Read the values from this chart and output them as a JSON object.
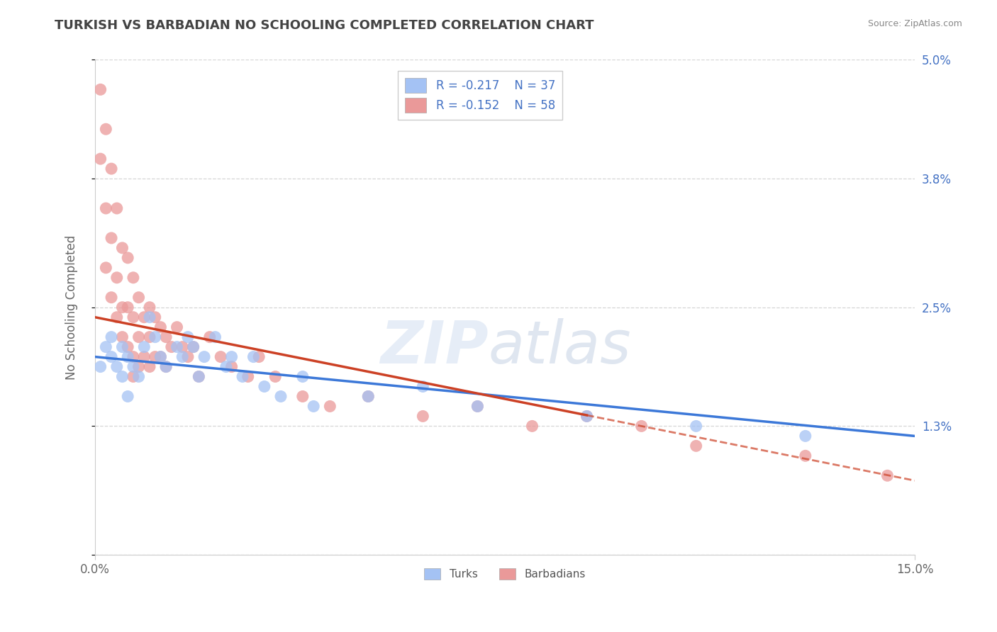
{
  "title": "TURKISH VS BARBADIAN NO SCHOOLING COMPLETED CORRELATION CHART",
  "source": "Source: ZipAtlas.com",
  "ylabel": "No Schooling Completed",
  "watermark": "ZIPatlas",
  "xmin": 0.0,
  "xmax": 0.15,
  "ymin": 0.0,
  "ymax": 0.05,
  "yticks": [
    0.0,
    0.013,
    0.025,
    0.038,
    0.05
  ],
  "ytick_labels_right": [
    "",
    "1.3%",
    "2.5%",
    "3.8%",
    "5.0%"
  ],
  "xticks": [
    0.0,
    0.15
  ],
  "xtick_labels": [
    "0.0%",
    "15.0%"
  ],
  "legend_r1": "R = -0.217",
  "legend_n1": "N = 37",
  "legend_r2": "R = -0.152",
  "legend_n2": "N = 58",
  "color_turks": "#a4c2f4",
  "color_barbadians": "#ea9999",
  "color_line_turks": "#3c78d8",
  "color_line_barbadians": "#cc4125",
  "turks_x": [
    0.001,
    0.002,
    0.003,
    0.003,
    0.004,
    0.005,
    0.005,
    0.006,
    0.006,
    0.007,
    0.008,
    0.009,
    0.01,
    0.011,
    0.012,
    0.013,
    0.015,
    0.016,
    0.017,
    0.018,
    0.019,
    0.02,
    0.022,
    0.024,
    0.025,
    0.027,
    0.029,
    0.031,
    0.034,
    0.038,
    0.04,
    0.05,
    0.06,
    0.07,
    0.09,
    0.11,
    0.13
  ],
  "turks_y": [
    0.019,
    0.021,
    0.02,
    0.022,
    0.019,
    0.021,
    0.018,
    0.02,
    0.016,
    0.019,
    0.018,
    0.021,
    0.024,
    0.022,
    0.02,
    0.019,
    0.021,
    0.02,
    0.022,
    0.021,
    0.018,
    0.02,
    0.022,
    0.019,
    0.02,
    0.018,
    0.02,
    0.017,
    0.016,
    0.018,
    0.015,
    0.016,
    0.017,
    0.015,
    0.014,
    0.013,
    0.012
  ],
  "barbadians_x": [
    0.001,
    0.001,
    0.002,
    0.002,
    0.002,
    0.003,
    0.003,
    0.003,
    0.004,
    0.004,
    0.004,
    0.005,
    0.005,
    0.005,
    0.006,
    0.006,
    0.006,
    0.007,
    0.007,
    0.007,
    0.007,
    0.008,
    0.008,
    0.008,
    0.009,
    0.009,
    0.01,
    0.01,
    0.01,
    0.011,
    0.011,
    0.012,
    0.012,
    0.013,
    0.013,
    0.014,
    0.015,
    0.016,
    0.017,
    0.018,
    0.019,
    0.021,
    0.023,
    0.025,
    0.028,
    0.03,
    0.033,
    0.038,
    0.043,
    0.05,
    0.06,
    0.07,
    0.08,
    0.09,
    0.1,
    0.11,
    0.13,
    0.145
  ],
  "barbadians_y": [
    0.047,
    0.04,
    0.043,
    0.035,
    0.029,
    0.039,
    0.032,
    0.026,
    0.035,
    0.028,
    0.024,
    0.031,
    0.025,
    0.022,
    0.03,
    0.025,
    0.021,
    0.028,
    0.024,
    0.02,
    0.018,
    0.026,
    0.022,
    0.019,
    0.024,
    0.02,
    0.025,
    0.022,
    0.019,
    0.024,
    0.02,
    0.023,
    0.02,
    0.022,
    0.019,
    0.021,
    0.023,
    0.021,
    0.02,
    0.021,
    0.018,
    0.022,
    0.02,
    0.019,
    0.018,
    0.02,
    0.018,
    0.016,
    0.015,
    0.016,
    0.014,
    0.015,
    0.013,
    0.014,
    0.013,
    0.011,
    0.01,
    0.008
  ],
  "background_color": "#ffffff",
  "grid_color": "#cccccc",
  "title_color": "#434343",
  "axis_label_color": "#666666",
  "tick_color_right": "#4472c4",
  "tick_color_bottom": "#666666"
}
